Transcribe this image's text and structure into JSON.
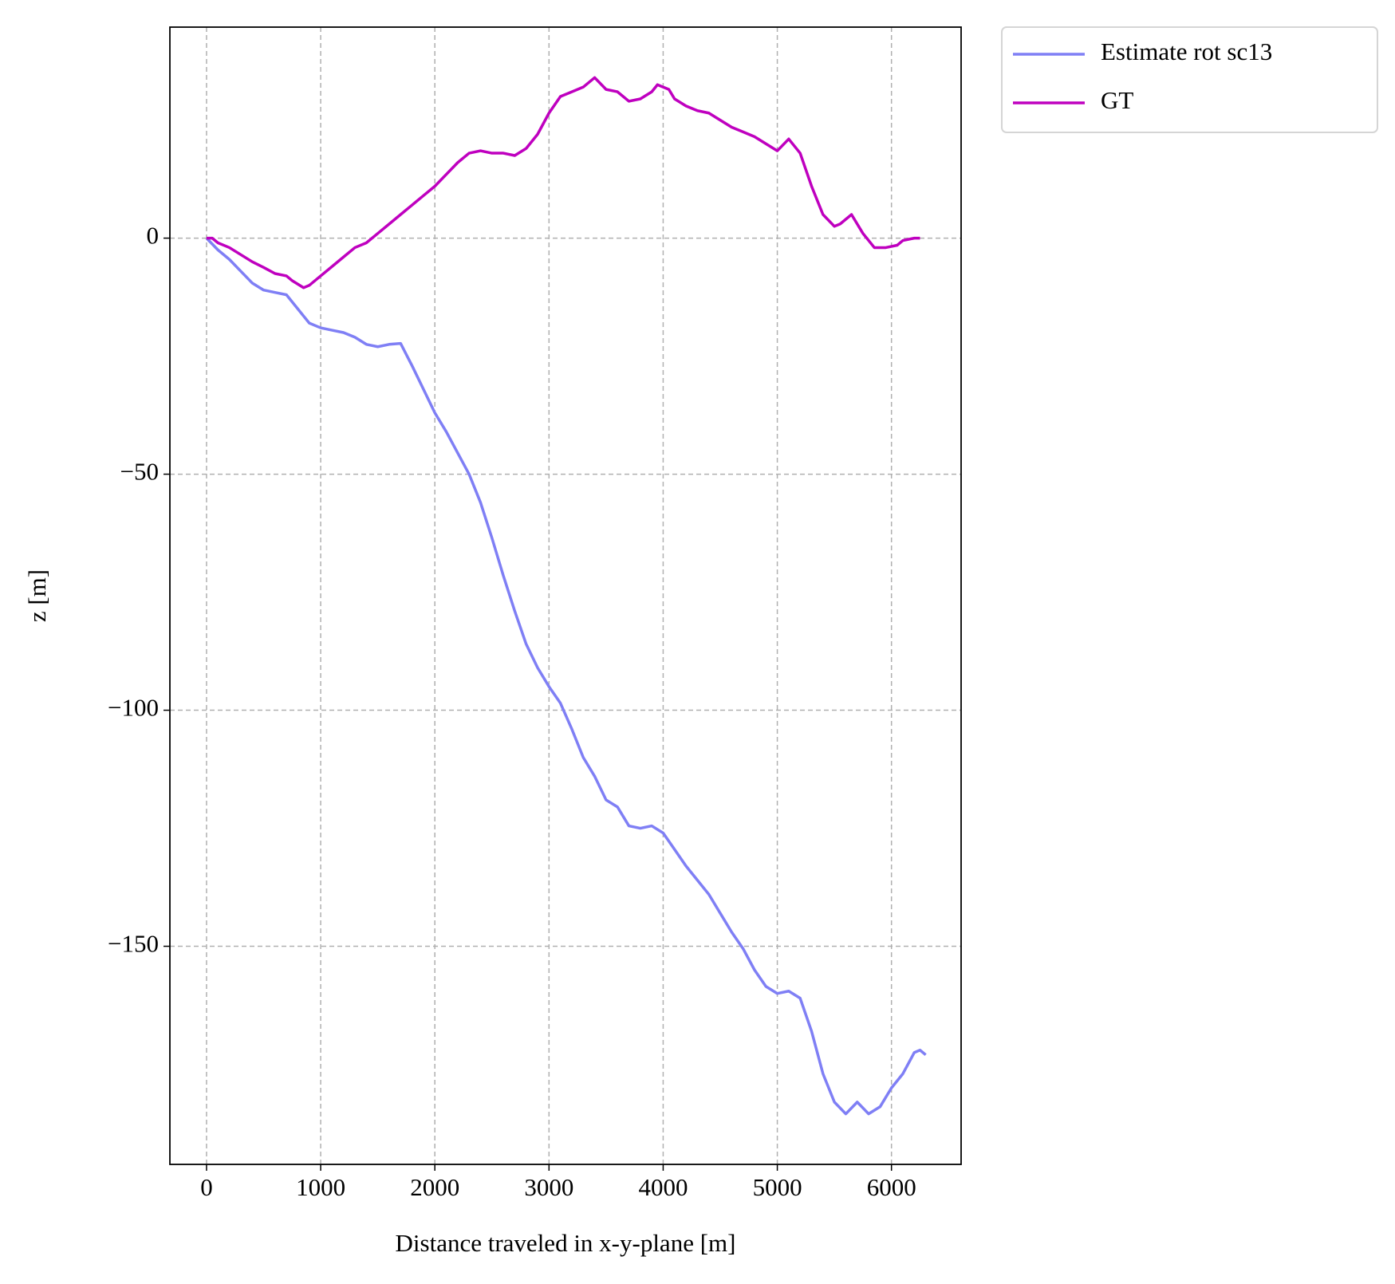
{
  "chart_data": {
    "type": "line",
    "x_label": "Distance traveled in x-y-plane [m]",
    "y_label": "z [m]",
    "xlim": [
      -321,
      6610
    ],
    "ylim": [
      -196.2,
      44.7
    ],
    "xticks": [
      0,
      1000,
      2000,
      3000,
      4000,
      5000,
      6000
    ],
    "yticks": [
      {
        "value": -150,
        "label": "−150"
      },
      {
        "value": -100,
        "label": "−100"
      },
      {
        "value": -50,
        "label": "−50"
      },
      0
    ],
    "grid": true,
    "legend": "outside upper right",
    "series": [
      {
        "name": "Estimate rot sc13",
        "color": "#7f7ff5",
        "x": [
          0,
          100,
          200,
          300,
          400,
          500,
          600,
          700,
          800,
          900,
          1000,
          1100,
          1200,
          1300,
          1400,
          1500,
          1600,
          1700,
          1800,
          1900,
          2000,
          2100,
          2200,
          2300,
          2400,
          2500,
          2600,
          2700,
          2800,
          2900,
          3000,
          3100,
          3200,
          3300,
          3400,
          3500,
          3600,
          3700,
          3800,
          3900,
          4000,
          4100,
          4200,
          4300,
          4400,
          4500,
          4600,
          4700,
          4800,
          4900,
          5000,
          5100,
          5200,
          5300,
          5400,
          5500,
          5600,
          5700,
          5800,
          5900,
          6000,
          6100,
          6200,
          6250,
          6300
        ],
        "values": [
          0,
          -2.5,
          -4.5,
          -7,
          -9.5,
          -11,
          -11.5,
          -12,
          -15,
          -18,
          -19,
          -19.5,
          -20,
          -21,
          -22.5,
          -23,
          -22.5,
          -22.3,
          -27,
          -32,
          -37,
          -41,
          -45.5,
          -50,
          -56,
          -63.5,
          -71.5,
          -79,
          -86,
          -91,
          -95,
          -98.5,
          -104,
          -110,
          -114,
          -119,
          -120.5,
          -124.5,
          -125,
          -124.5,
          -126,
          -129.5,
          -133,
          -136,
          -139,
          -143,
          -147,
          -150.5,
          -155,
          -158.5,
          -160,
          -159.5,
          -161,
          -168,
          -177,
          -183,
          -185.5,
          -183,
          -185.5,
          -184,
          -180,
          -177,
          -172.5,
          -172,
          -173
        ]
      },
      {
        "name": "GT",
        "color": "#bf00bf",
        "x": [
          0,
          50,
          100,
          200,
          300,
          400,
          500,
          600,
          700,
          750,
          850,
          900,
          1000,
          1100,
          1200,
          1300,
          1400,
          1500,
          1600,
          1700,
          1800,
          1900,
          2000,
          2100,
          2200,
          2300,
          2400,
          2500,
          2600,
          2700,
          2800,
          2900,
          3000,
          3100,
          3200,
          3300,
          3400,
          3500,
          3600,
          3700,
          3800,
          3900,
          3950,
          4050,
          4100,
          4200,
          4300,
          4400,
          4500,
          4600,
          4700,
          4800,
          4900,
          5000,
          5100,
          5200,
          5300,
          5400,
          5500,
          5550,
          5650,
          5750,
          5850,
          5950,
          6050,
          6100,
          6200,
          6250
        ],
        "values": [
          0,
          0,
          -1,
          -2,
          -3.5,
          -5,
          -6.2,
          -7.5,
          -8,
          -9,
          -10.5,
          -10,
          -8,
          -6,
          -4,
          -2,
          -1,
          1,
          3,
          5,
          7,
          9,
          11,
          13.5,
          16,
          18,
          18.5,
          18,
          18,
          17.5,
          19,
          22,
          26.5,
          30,
          31,
          32,
          34,
          31.5,
          31,
          29,
          29.5,
          31,
          32.5,
          31.5,
          29.5,
          28,
          27,
          26.5,
          25,
          23.5,
          22.5,
          21.5,
          20,
          18.5,
          21,
          18,
          11,
          5,
          2.5,
          3,
          5,
          1,
          -2,
          -2,
          -1.5,
          -0.5,
          0,
          0
        ]
      }
    ]
  }
}
